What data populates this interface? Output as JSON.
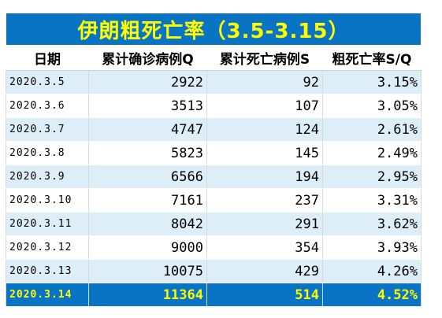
{
  "table": {
    "title": "伊朗粗死亡率（3.5-3.15）",
    "headers": [
      "日期",
      "累计确诊病例Q",
      "累计死亡病例S",
      "粗死亡率S/Q"
    ],
    "rows": [
      {
        "date": "2020.3.5",
        "cases": "2922",
        "deaths": "92",
        "rate": "3.15%"
      },
      {
        "date": "2020.3.6",
        "cases": "3513",
        "deaths": "107",
        "rate": "3.05%"
      },
      {
        "date": "2020.3.7",
        "cases": "4747",
        "deaths": "124",
        "rate": "2.61%"
      },
      {
        "date": "2020.3.8",
        "cases": "5823",
        "deaths": "145",
        "rate": "2.49%"
      },
      {
        "date": "2020.3.9",
        "cases": "6566",
        "deaths": "194",
        "rate": "2.95%"
      },
      {
        "date": "2020.3.10",
        "cases": "7161",
        "deaths": "237",
        "rate": "3.31%"
      },
      {
        "date": "2020.3.11",
        "cases": "8042",
        "deaths": "291",
        "rate": "3.62%"
      },
      {
        "date": "2020.3.12",
        "cases": "9000",
        "deaths": "354",
        "rate": "3.93%"
      },
      {
        "date": "2020.3.13",
        "cases": "10075",
        "deaths": "429",
        "rate": "4.26%"
      },
      {
        "date": "2020.3.14",
        "cases": "11364",
        "deaths": "514",
        "rate": "4.52%"
      }
    ],
    "highlighted_row": "2020.3.14"
  },
  "colors": {
    "title_background": "#0a74c4",
    "title_text": "#ffff00",
    "stripe": "#ddeef8"
  }
}
